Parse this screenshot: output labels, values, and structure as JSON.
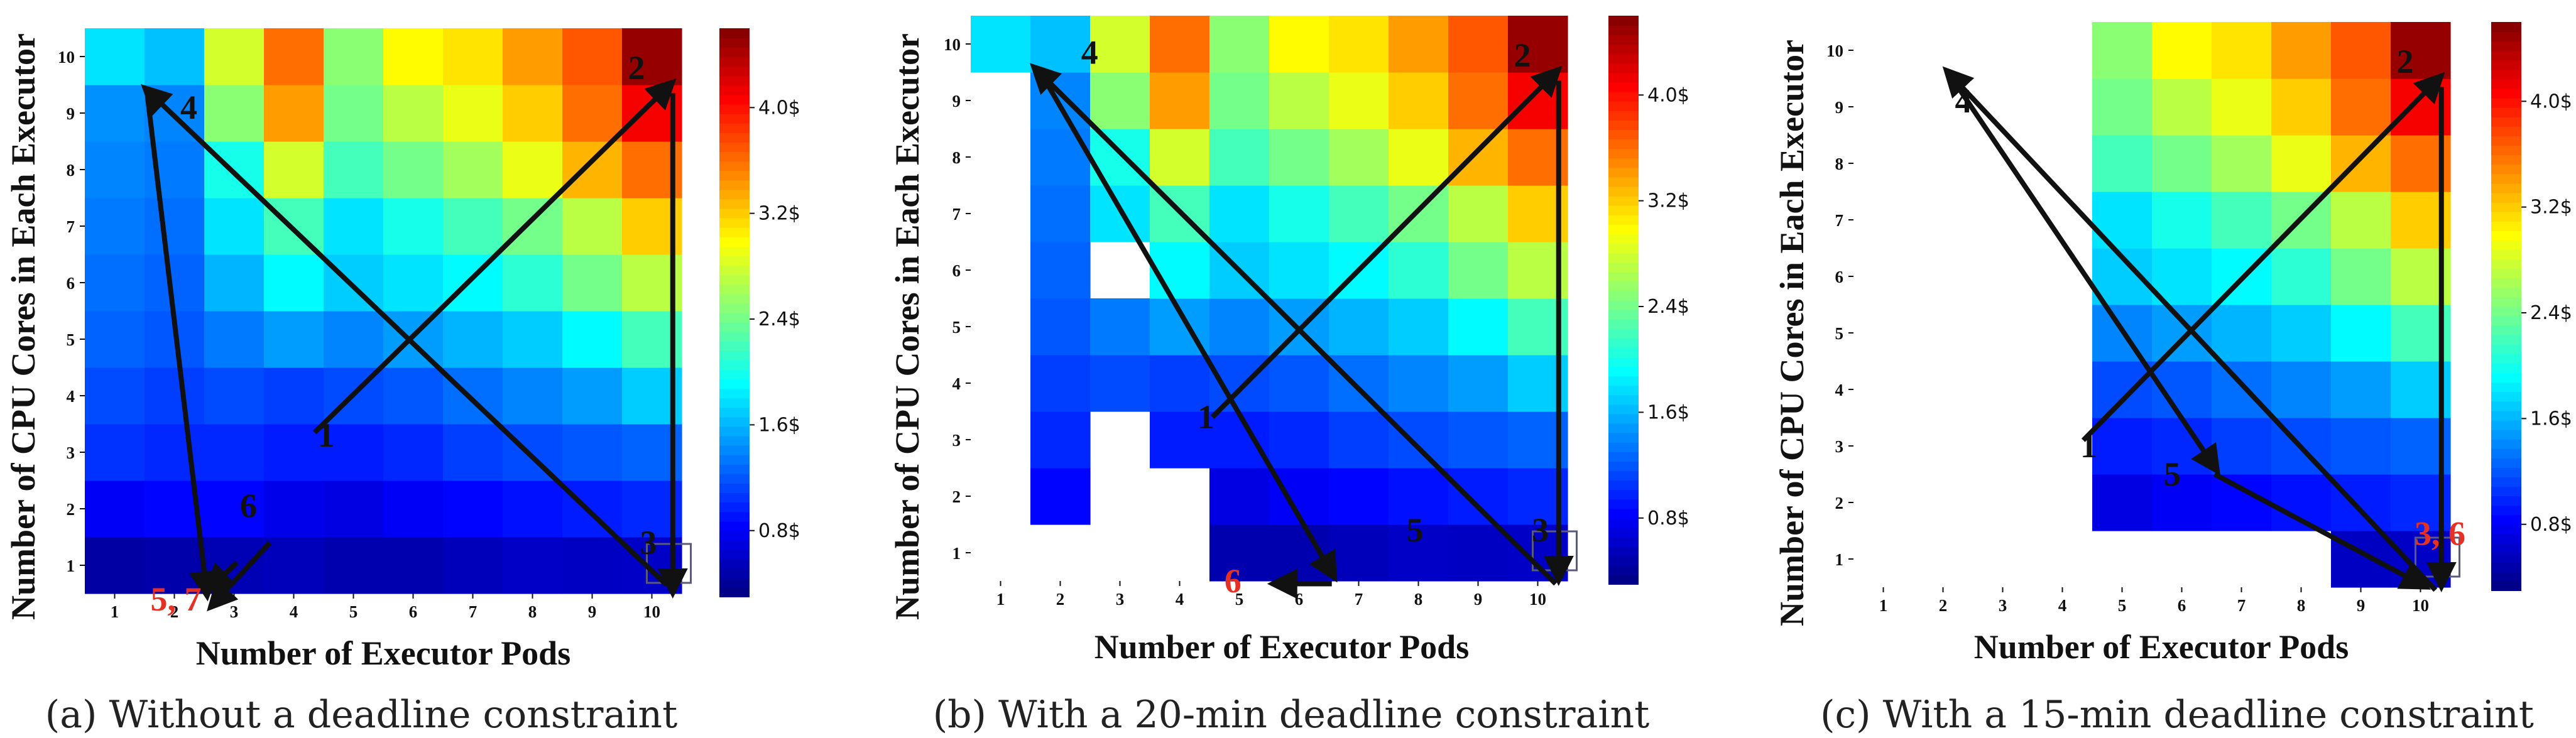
{
  "colormap": "jet",
  "colors": {
    "arrow": "#111111",
    "label_default": "#111111",
    "label_highlight": "#e53023",
    "highlight_box": "#5a5a7a"
  },
  "colorbar": {
    "vmin": 0.3,
    "vmax": 4.6,
    "ticks": [
      0.8,
      1.6,
      2.4,
      3.2,
      4.0
    ],
    "ticklabels": [
      "0.8$",
      "1.6$",
      "2.4$",
      "3.2$",
      "4.0$"
    ]
  },
  "base_costs": [
    [
      0.45,
      0.48,
      0.52,
      0.55,
      0.5,
      0.5,
      0.55,
      0.6,
      0.58,
      0.6
    ],
    [
      0.8,
      0.85,
      0.85,
      0.75,
      0.72,
      0.8,
      0.85,
      0.9,
      0.95,
      1.0
    ],
    [
      1.05,
      1.0,
      1.0,
      0.95,
      0.95,
      1.0,
      1.1,
      1.15,
      1.2,
      1.25
    ],
    [
      1.15,
      1.1,
      1.15,
      1.1,
      1.15,
      1.2,
      1.3,
      1.4,
      1.5,
      1.7
    ],
    [
      1.25,
      1.2,
      1.35,
      1.5,
      1.4,
      1.5,
      1.6,
      1.7,
      1.9,
      2.2
    ],
    [
      1.3,
      1.25,
      1.6,
      1.9,
      1.7,
      1.8,
      1.9,
      2.1,
      2.4,
      2.7
    ],
    [
      1.35,
      1.3,
      1.8,
      2.2,
      1.8,
      2.0,
      2.2,
      2.4,
      2.7,
      3.2
    ],
    [
      1.4,
      1.35,
      2.0,
      2.8,
      2.2,
      2.4,
      2.6,
      2.9,
      3.3,
      3.6
    ],
    [
      1.45,
      1.4,
      2.5,
      3.4,
      2.4,
      2.7,
      2.9,
      3.2,
      3.6,
      4.1
    ],
    [
      1.8,
      1.65,
      2.8,
      3.6,
      2.5,
      3.0,
      3.1,
      3.4,
      3.7,
      4.5
    ]
  ],
  "charts": [
    {
      "id": "a",
      "caption": "(a) Without a deadline constraint",
      "xlabel": "Number of Executor Pods",
      "ylabel": "Number of CPU Cores in Each Executor",
      "x_ticks": [
        "1",
        "2",
        "3",
        "4",
        "5",
        "6",
        "7",
        "8",
        "9",
        "10"
      ],
      "y_ticks": [
        "1",
        "2",
        "3",
        "4",
        "5",
        "6",
        "7",
        "8",
        "9",
        "10"
      ],
      "masked": [],
      "highlight_cell": [
        10,
        1
      ],
      "arrows": [
        {
          "from": [
            4.35,
            3.35
          ],
          "to": [
            10.35,
            9.55
          ]
        },
        {
          "from": [
            10.35,
            9.35
          ],
          "to": [
            10.35,
            0.5
          ]
        },
        {
          "from": [
            10.25,
            0.65
          ],
          "to": [
            1.5,
            9.45
          ]
        },
        {
          "from": [
            1.55,
            9.3
          ],
          "to": [
            2.55,
            0.45
          ]
        },
        {
          "from": [
            3.05,
            1.05
          ],
          "to": [
            2.55,
            0.55
          ]
        },
        {
          "from": [
            3.6,
            1.4
          ],
          "to": [
            2.6,
            0.25
          ]
        }
      ],
      "step_labels": [
        {
          "text": "1",
          "x": 4.4,
          "y": 3.1,
          "color": "label_default"
        },
        {
          "text": "2",
          "x": 9.6,
          "y": 9.6,
          "color": "label_default"
        },
        {
          "text": "3",
          "x": 9.8,
          "y": 1.2,
          "color": "label_default"
        },
        {
          "text": "4",
          "x": 2.1,
          "y": 8.9,
          "color": "label_default"
        },
        {
          "text": "6",
          "x": 3.1,
          "y": 1.85,
          "color": "label_default"
        },
        {
          "text": "5, 7",
          "x": 1.6,
          "y": 0.2,
          "color": "label_highlight"
        }
      ]
    },
    {
      "id": "b",
      "caption": "(b) With a 20-min deadline constraint",
      "xlabel": "Number of Executor Pods",
      "ylabel": "Number of CPU Cores in Each Executor",
      "x_ticks": [
        "1",
        "2",
        "3",
        "4",
        "5",
        "6",
        "7",
        "8",
        "9",
        "10"
      ],
      "y_ticks": [
        "1",
        "2",
        "3",
        "4",
        "5",
        "6",
        "7",
        "8",
        "9",
        "10"
      ],
      "masked": [
        [
          1,
          1
        ],
        [
          1,
          2
        ],
        [
          1,
          3
        ],
        [
          1,
          4
        ],
        [
          1,
          5
        ],
        [
          1,
          6
        ],
        [
          1,
          7
        ],
        [
          1,
          8
        ],
        [
          1,
          9
        ],
        [
          2,
          1
        ],
        [
          3,
          1
        ],
        [
          3,
          2
        ],
        [
          3,
          3
        ],
        [
          3,
          6
        ],
        [
          4,
          1
        ],
        [
          4,
          2
        ]
      ],
      "highlight_cell": [
        10,
        1
      ],
      "arrows": [
        {
          "from": [
            4.55,
            3.4
          ],
          "to": [
            10.35,
            9.55
          ]
        },
        {
          "from": [
            10.35,
            9.35
          ],
          "to": [
            10.35,
            0.5
          ]
        },
        {
          "from": [
            10.3,
            0.45
          ],
          "to": [
            1.55,
            9.6
          ]
        },
        {
          "from": [
            1.75,
            9.35
          ],
          "to": [
            6.6,
            0.55
          ]
        },
        {
          "from": [
            6.55,
            0.45
          ],
          "to": [
            5.55,
            0.45
          ]
        }
      ],
      "step_labels": [
        {
          "text": "1",
          "x": 4.3,
          "y": 3.2,
          "color": "label_default"
        },
        {
          "text": "2",
          "x": 9.6,
          "y": 9.6,
          "color": "label_default"
        },
        {
          "text": "3",
          "x": 9.9,
          "y": 1.2,
          "color": "label_default"
        },
        {
          "text": "4",
          "x": 2.35,
          "y": 9.65,
          "color": "label_default"
        },
        {
          "text": "5",
          "x": 7.8,
          "y": 1.2,
          "color": "label_default"
        },
        {
          "text": "6",
          "x": 4.75,
          "y": 0.3,
          "color": "label_highlight"
        }
      ]
    },
    {
      "id": "c",
      "caption": "(c) With a 15-min deadline constraint",
      "xlabel": "Number of Executor Pods",
      "ylabel": "Number of CPU Cores in Each Executor",
      "x_ticks": [
        "1",
        "2",
        "3",
        "4",
        "5",
        "6",
        "7",
        "8",
        "9",
        "10"
      ],
      "y_ticks": [
        "1",
        "2",
        "3",
        "4",
        "5",
        "6",
        "7",
        "8",
        "9",
        "10"
      ],
      "masked": [
        [
          1,
          1
        ],
        [
          1,
          2
        ],
        [
          1,
          3
        ],
        [
          1,
          4
        ],
        [
          1,
          5
        ],
        [
          1,
          6
        ],
        [
          1,
          7
        ],
        [
          1,
          8
        ],
        [
          1,
          9
        ],
        [
          1,
          10
        ],
        [
          2,
          1
        ],
        [
          2,
          2
        ],
        [
          2,
          3
        ],
        [
          2,
          4
        ],
        [
          2,
          5
        ],
        [
          2,
          6
        ],
        [
          2,
          7
        ],
        [
          2,
          8
        ],
        [
          2,
          9
        ],
        [
          2,
          10
        ],
        [
          3,
          1
        ],
        [
          3,
          2
        ],
        [
          3,
          3
        ],
        [
          3,
          4
        ],
        [
          3,
          5
        ],
        [
          3,
          6
        ],
        [
          3,
          7
        ],
        [
          3,
          8
        ],
        [
          3,
          9
        ],
        [
          3,
          10
        ],
        [
          4,
          1
        ],
        [
          4,
          2
        ],
        [
          4,
          3
        ],
        [
          4,
          4
        ],
        [
          4,
          5
        ],
        [
          4,
          6
        ],
        [
          4,
          7
        ],
        [
          4,
          8
        ],
        [
          4,
          9
        ],
        [
          4,
          10
        ],
        [
          5,
          1
        ],
        [
          6,
          1
        ],
        [
          7,
          1
        ],
        [
          8,
          1
        ]
      ],
      "highlight_cell": [
        10,
        1
      ],
      "arrows": [
        {
          "from": [
            4.35,
            3.1
          ],
          "to": [
            10.35,
            9.55
          ]
        },
        {
          "from": [
            10.35,
            9.35
          ],
          "to": [
            10.35,
            0.5
          ]
        },
        {
          "from": [
            10.25,
            0.45
          ],
          "to": [
            2.05,
            9.65
          ]
        },
        {
          "from": [
            2.25,
            9.35
          ],
          "to": [
            6.6,
            2.55
          ]
        },
        {
          "from": [
            6.55,
            2.5
          ],
          "to": [
            10.1,
            0.5
          ]
        }
      ],
      "step_labels": [
        {
          "text": "1",
          "x": 4.3,
          "y": 2.8,
          "color": "label_default"
        },
        {
          "text": "2",
          "x": 9.6,
          "y": 9.6,
          "color": "label_default"
        },
        {
          "text": "4",
          "x": 2.2,
          "y": 8.9,
          "color": "label_default"
        },
        {
          "text": "5",
          "x": 5.7,
          "y": 2.3,
          "color": "label_default"
        },
        {
          "text": "3, 6",
          "x": 9.9,
          "y": 1.25,
          "color": "label_highlight"
        }
      ]
    }
  ]
}
